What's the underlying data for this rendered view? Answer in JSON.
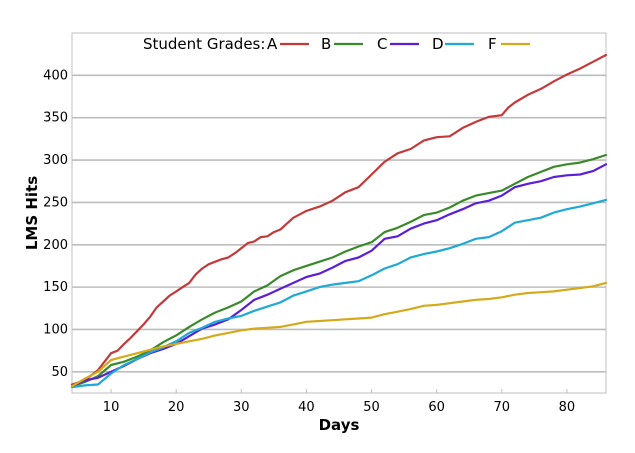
{
  "chart_data": {
    "type": "line",
    "title": "",
    "xlabel": "Days",
    "ylabel": "LMS Hits",
    "xlim": [
      4,
      86
    ],
    "ylim": [
      25,
      450
    ],
    "xticks": [
      10,
      20,
      30,
      40,
      50,
      60,
      70,
      80
    ],
    "yticks": [
      50,
      100,
      150,
      200,
      250,
      300,
      350,
      400
    ],
    "grid": "horizontal",
    "legend_title": "Student Grades:",
    "legend_position": "top",
    "series": [
      {
        "name": "A",
        "color": "#c23b3b",
        "x": [
          4,
          6,
          8,
          10,
          11,
          12,
          13,
          14,
          15,
          16,
          17,
          18,
          19,
          20,
          21,
          22,
          23,
          24,
          25,
          26,
          27,
          28,
          29,
          30,
          31,
          32,
          33,
          34,
          35,
          36,
          37,
          38,
          39,
          40,
          42,
          44,
          46,
          48,
          50,
          52,
          54,
          56,
          58,
          60,
          62,
          64,
          66,
          68,
          70,
          71,
          72,
          74,
          76,
          78,
          80,
          82,
          84,
          86
        ],
        "y": [
          35,
          40,
          52,
          72,
          75,
          83,
          90,
          98,
          106,
          115,
          126,
          133,
          140,
          145,
          150,
          155,
          165,
          172,
          177,
          180,
          183,
          185,
          190,
          196,
          202,
          204,
          209,
          210,
          215,
          218,
          225,
          232,
          236,
          240,
          245,
          252,
          262,
          268,
          283,
          298,
          308,
          313,
          323,
          327,
          328,
          338,
          345,
          351,
          353,
          362,
          368,
          377,
          384,
          393,
          401,
          408,
          416,
          424
        ]
      },
      {
        "name": "B",
        "color": "#3a8a2a",
        "x": [
          4,
          6,
          8,
          10,
          12,
          14,
          16,
          18,
          20,
          22,
          24,
          26,
          28,
          30,
          32,
          34,
          36,
          38,
          40,
          42,
          44,
          46,
          48,
          50,
          52,
          54,
          56,
          58,
          60,
          62,
          64,
          66,
          68,
          70,
          72,
          74,
          76,
          78,
          80,
          82,
          84,
          86
        ],
        "y": [
          33,
          38,
          45,
          58,
          62,
          68,
          75,
          85,
          93,
          103,
          112,
          120,
          126,
          133,
          145,
          152,
          163,
          170,
          175,
          180,
          185,
          192,
          198,
          203,
          215,
          220,
          227,
          235,
          238,
          244,
          252,
          258,
          261,
          264,
          272,
          280,
          286,
          292,
          295,
          297,
          301,
          306
        ]
      },
      {
        "name": "C",
        "color": "#5b1fd8",
        "x": [
          4,
          6,
          8,
          10,
          12,
          14,
          16,
          18,
          20,
          22,
          24,
          26,
          28,
          30,
          32,
          34,
          36,
          38,
          40,
          42,
          44,
          46,
          48,
          50,
          52,
          54,
          56,
          58,
          60,
          62,
          64,
          66,
          68,
          70,
          72,
          74,
          76,
          78,
          80,
          82,
          84,
          86
        ],
        "y": [
          33,
          40,
          43,
          50,
          57,
          65,
          72,
          77,
          83,
          92,
          101,
          106,
          112,
          123,
          135,
          141,
          148,
          155,
          162,
          166,
          173,
          181,
          185,
          193,
          207,
          210,
          219,
          225,
          229,
          236,
          242,
          249,
          252,
          258,
          268,
          272,
          275,
          280,
          282,
          283,
          287,
          295
        ]
      },
      {
        "name": "D",
        "color": "#1fa9d6",
        "x": [
          4,
          6,
          8,
          10,
          12,
          14,
          16,
          18,
          20,
          22,
          24,
          26,
          28,
          30,
          32,
          34,
          36,
          38,
          40,
          42,
          44,
          46,
          48,
          50,
          52,
          54,
          56,
          58,
          60,
          62,
          64,
          66,
          68,
          70,
          72,
          74,
          76,
          78,
          80,
          82,
          84,
          86
        ],
        "y": [
          32,
          34,
          35,
          48,
          58,
          65,
          73,
          79,
          86,
          96,
          102,
          109,
          113,
          116,
          122,
          127,
          132,
          140,
          145,
          150,
          153,
          155,
          157,
          164,
          172,
          177,
          185,
          189,
          192,
          196,
          201,
          207,
          209,
          216,
          226,
          229,
          232,
          238,
          242,
          245,
          249,
          253
        ]
      },
      {
        "name": "F",
        "color": "#d4a91a",
        "x": [
          4,
          6,
          8,
          10,
          12,
          14,
          16,
          18,
          20,
          22,
          24,
          26,
          28,
          30,
          32,
          34,
          36,
          38,
          40,
          42,
          44,
          46,
          48,
          50,
          52,
          54,
          56,
          58,
          60,
          62,
          64,
          66,
          68,
          70,
          72,
          74,
          76,
          78,
          80,
          82,
          84,
          86
        ],
        "y": [
          33,
          42,
          50,
          64,
          68,
          72,
          76,
          80,
          83,
          86,
          89,
          93,
          96,
          99,
          101,
          102,
          103,
          106,
          109,
          110,
          111,
          112,
          113,
          114,
          118,
          121,
          124,
          128,
          129,
          131,
          133,
          135,
          136,
          138,
          141,
          143,
          144,
          145,
          147,
          149,
          151,
          155
        ]
      }
    ]
  }
}
